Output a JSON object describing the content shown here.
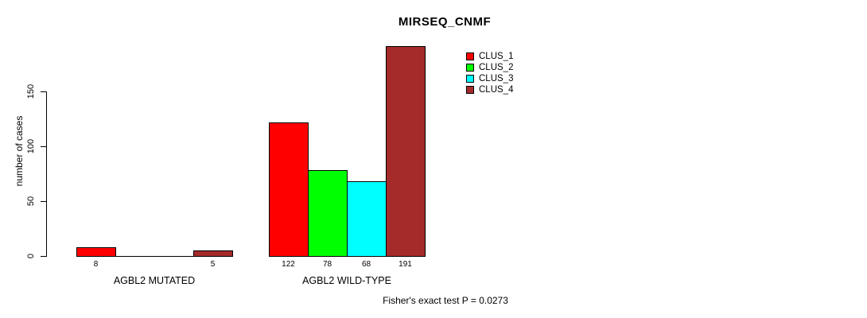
{
  "chart_data": {
    "type": "bar",
    "title": "MIRSEQ_CNMF",
    "xlabel": "",
    "ylabel": "number of cases",
    "categories": [
      "AGBL2 MUTATED",
      "AGBL2 WILD-TYPE"
    ],
    "series": [
      {
        "name": "CLUS_1",
        "color": "#ff0000",
        "values": [
          8,
          122
        ]
      },
      {
        "name": "CLUS_2",
        "color": "#00ff00",
        "values": [
          0,
          78
        ]
      },
      {
        "name": "CLUS_3",
        "color": "#00ffff",
        "values": [
          0,
          68
        ]
      },
      {
        "name": "CLUS_4",
        "color": "#a52a2a",
        "values": [
          5,
          191
        ]
      }
    ],
    "bar_labels": [
      [
        "8",
        "",
        "",
        "5"
      ],
      [
        "122",
        "78",
        "68",
        "191"
      ]
    ],
    "yticks": [
      0,
      50,
      100,
      150
    ],
    "ylim": [
      0,
      150
    ],
    "grid": false,
    "legend_position": "top-right",
    "background": "#ffffff"
  },
  "legend": {
    "items": [
      {
        "label": "CLUS_1",
        "color": "#ff0000"
      },
      {
        "label": "CLUS_2",
        "color": "#00ff00"
      },
      {
        "label": "CLUS_3",
        "color": "#00ffff"
      },
      {
        "label": "CLUS_4",
        "color": "#a52a2a"
      }
    ]
  },
  "footer": {
    "text": "Fisher's exact test P = 0.0273"
  }
}
